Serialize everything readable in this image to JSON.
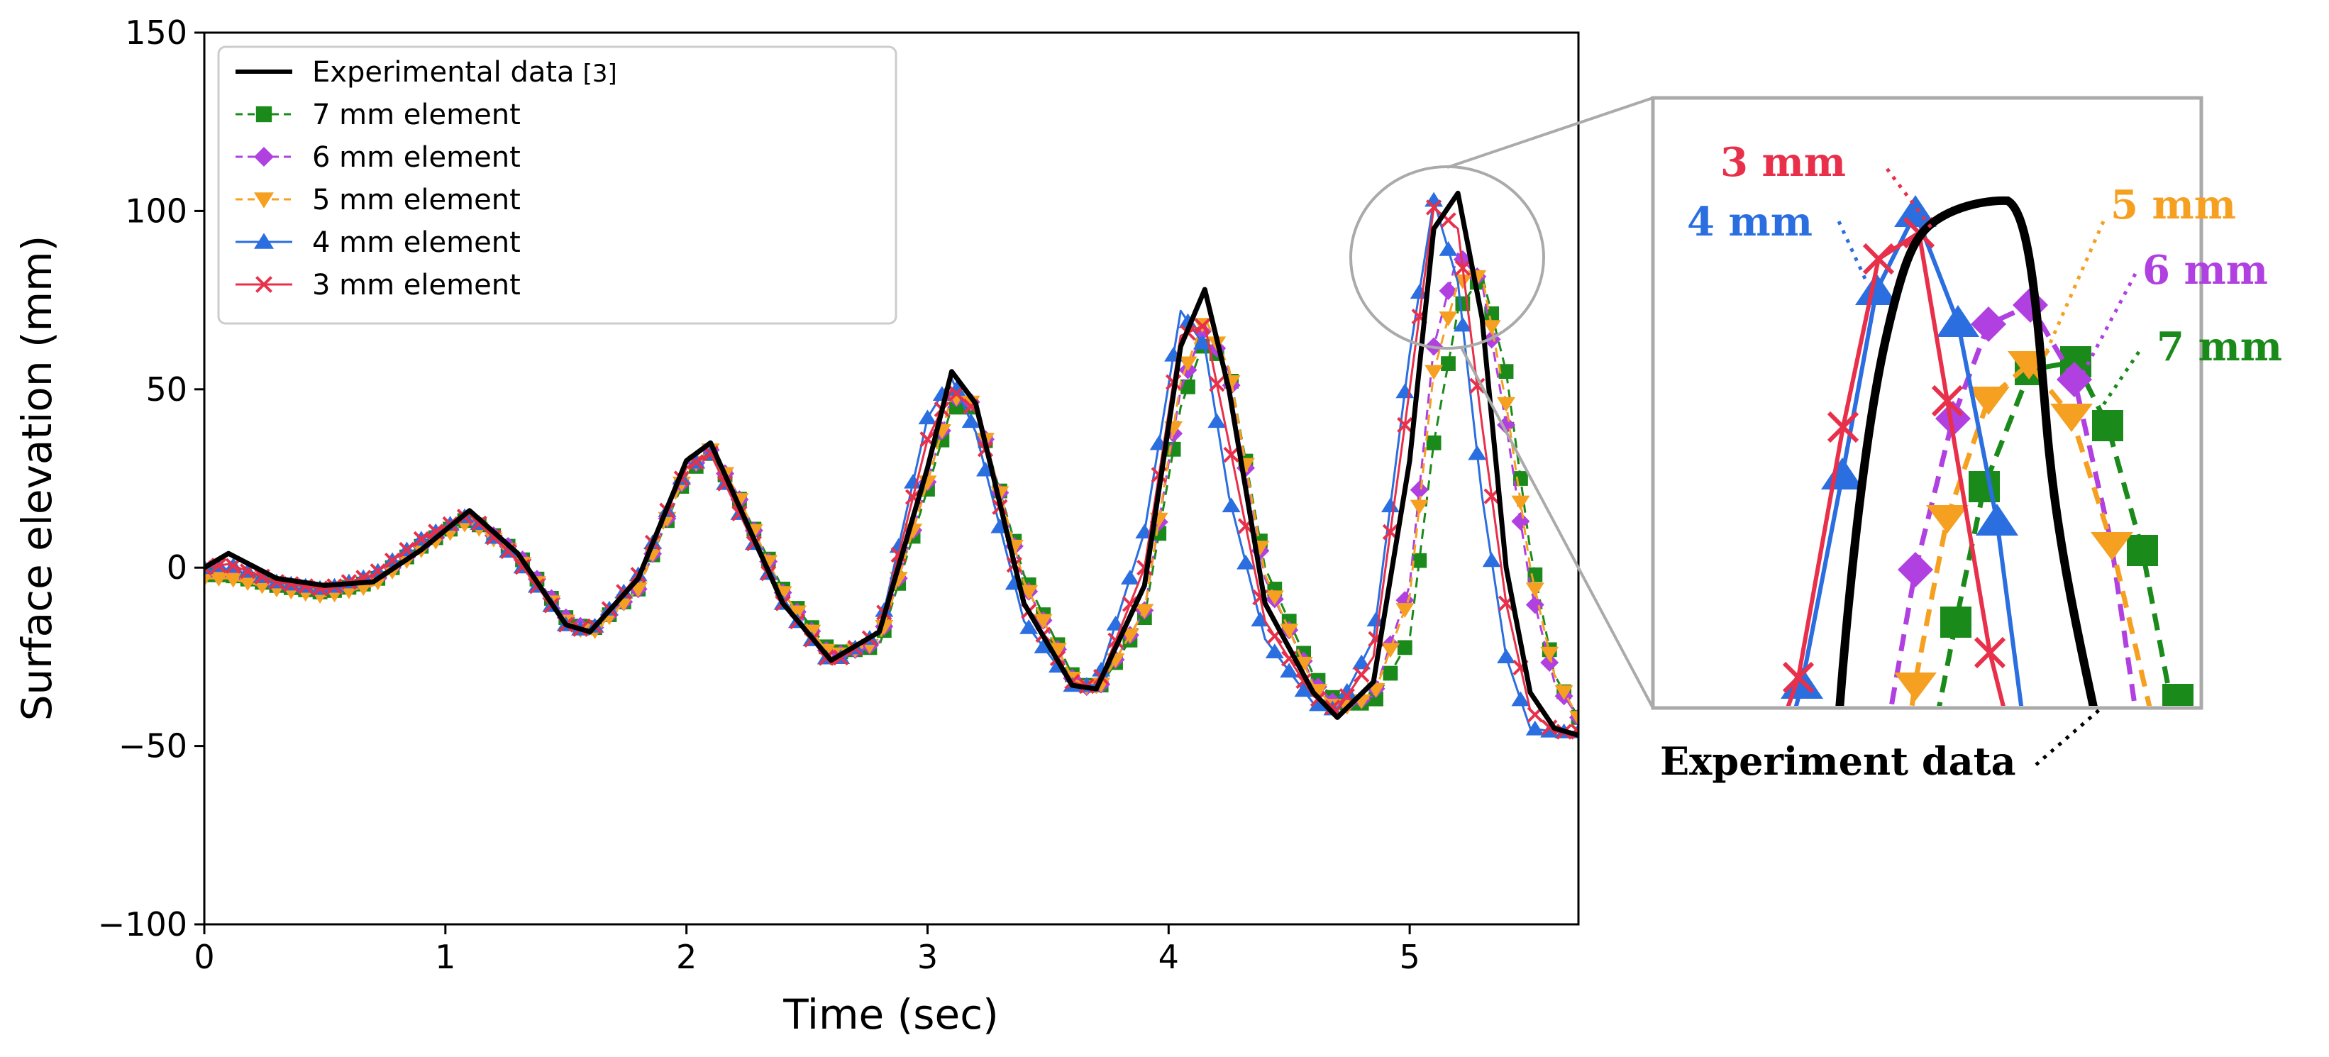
{
  "chart_data": {
    "type": "line",
    "xlabel": "Time (sec)",
    "ylabel": "Surface elevation (mm)",
    "xlim": [
      0,
      5.7
    ],
    "ylim": [
      -100,
      150
    ],
    "xticks": [
      0,
      1,
      2,
      3,
      4,
      5
    ],
    "yticks": [
      -100,
      -50,
      0,
      50,
      100,
      150
    ],
    "grid": false,
    "legend_position": "top-left",
    "series": [
      {
        "id": "exp",
        "name": "Experimental data",
        "name_ref": "[3]",
        "color": "#000000",
        "linestyle": "solid",
        "marker": "none",
        "x": [
          0,
          0.1,
          0.3,
          0.5,
          0.7,
          0.9,
          1.1,
          1.3,
          1.5,
          1.6,
          1.8,
          2.0,
          2.1,
          2.2,
          2.4,
          2.6,
          2.8,
          3.0,
          3.1,
          3.2,
          3.4,
          3.6,
          3.7,
          3.9,
          4.05,
          4.15,
          4.25,
          4.4,
          4.6,
          4.7,
          4.85,
          5.0,
          5.1,
          5.2,
          5.3,
          5.4,
          5.5,
          5.6,
          5.7
        ],
        "y": [
          0,
          4,
          -3,
          -5,
          -4,
          5,
          16,
          4,
          -16,
          -18,
          -3,
          30,
          35,
          20,
          -10,
          -26,
          -18,
          28,
          55,
          46,
          -10,
          -33,
          -34,
          -5,
          62,
          78,
          50,
          -10,
          -35,
          -42,
          -32,
          30,
          95,
          105,
          70,
          0,
          -35,
          -45,
          -47
        ]
      },
      {
        "id": "mm7",
        "name": "7 mm element",
        "color": "#1a8a1a",
        "linestyle": "dashed",
        "marker": "square",
        "x": [
          0,
          0.1,
          0.3,
          0.5,
          0.7,
          0.9,
          1.1,
          1.3,
          1.5,
          1.6,
          1.8,
          2.0,
          2.1,
          2.2,
          2.4,
          2.6,
          2.8,
          3.0,
          3.1,
          3.2,
          3.4,
          3.6,
          3.7,
          3.9,
          4.05,
          4.15,
          4.25,
          4.4,
          4.6,
          4.7,
          4.85,
          5.0,
          5.1,
          5.2,
          5.3,
          5.4,
          5.5,
          5.6,
          5.7
        ],
        "y": [
          -2,
          -2,
          -5,
          -7,
          -4,
          6,
          14,
          4,
          -14,
          -18,
          -6,
          26,
          32,
          22,
          -6,
          -24,
          -22,
          22,
          45,
          45,
          -2,
          -30,
          -35,
          -14,
          45,
          64,
          56,
          0,
          -30,
          -38,
          -38,
          -20,
          35,
          72,
          82,
          55,
          5,
          -30,
          -42
        ]
      },
      {
        "id": "mm6",
        "name": "6 mm element",
        "color": "#b040e0",
        "linestyle": "dashed",
        "marker": "diamond",
        "x": [
          0,
          0.1,
          0.3,
          0.5,
          0.7,
          0.9,
          1.1,
          1.3,
          1.5,
          1.6,
          1.8,
          2.0,
          2.1,
          2.2,
          2.4,
          2.6,
          2.8,
          3.0,
          3.1,
          3.2,
          3.4,
          3.6,
          3.7,
          3.9,
          4.05,
          4.15,
          4.25,
          4.4,
          4.6,
          4.7,
          4.85,
          5.0,
          5.1,
          5.2,
          5.3,
          5.4,
          5.5,
          5.6,
          5.7
        ],
        "y": [
          -2,
          -2,
          -5,
          -7,
          -4,
          6,
          14,
          4,
          -14,
          -18,
          -6,
          27,
          33,
          22,
          -7,
          -25,
          -21,
          24,
          48,
          46,
          -4,
          -31,
          -35,
          -12,
          50,
          68,
          55,
          -3,
          -32,
          -39,
          -36,
          -5,
          62,
          88,
          80,
          40,
          -5,
          -32,
          -42
        ]
      },
      {
        "id": "mm5",
        "name": "5 mm element",
        "color": "#f5a020",
        "linestyle": "dashed",
        "marker": "triangle-down",
        "x": [
          0,
          0.1,
          0.3,
          0.5,
          0.7,
          0.9,
          1.1,
          1.3,
          1.5,
          1.6,
          1.8,
          2.0,
          2.1,
          2.2,
          2.4,
          2.6,
          2.8,
          3.0,
          3.1,
          3.2,
          3.4,
          3.6,
          3.7,
          3.9,
          4.05,
          4.15,
          4.25,
          4.4,
          4.6,
          4.7,
          4.85,
          5.0,
          5.1,
          5.2,
          5.3,
          5.4,
          5.5,
          5.6,
          5.7
        ],
        "y": [
          -3,
          -3,
          -6,
          -8,
          -5,
          5,
          13,
          3,
          -15,
          -19,
          -6,
          27,
          33,
          22,
          -7,
          -25,
          -21,
          24,
          48,
          46,
          -4,
          -31,
          -35,
          -12,
          52,
          70,
          56,
          -2,
          -33,
          -40,
          -36,
          -8,
          55,
          80,
          82,
          46,
          0,
          -30,
          -42
        ]
      },
      {
        "id": "mm4",
        "name": "4 mm element",
        "color": "#2a6ee0",
        "linestyle": "solid",
        "marker": "triangle-up",
        "x": [
          0,
          0.1,
          0.3,
          0.5,
          0.7,
          0.9,
          1.1,
          1.3,
          1.5,
          1.6,
          1.8,
          2.0,
          2.1,
          2.2,
          2.4,
          2.6,
          2.8,
          3.0,
          3.1,
          3.2,
          3.4,
          3.6,
          3.7,
          3.9,
          4.05,
          4.15,
          4.25,
          4.4,
          4.6,
          4.7,
          4.85,
          5.0,
          5.1,
          5.2,
          5.3,
          5.4,
          5.5,
          5.6,
          5.7
        ],
        "y": [
          0,
          1,
          -4,
          -6,
          -2,
          8,
          15,
          2,
          -16,
          -18,
          -2,
          28,
          32,
          18,
          -10,
          -27,
          -18,
          42,
          53,
          38,
          -15,
          -33,
          -33,
          10,
          72,
          62,
          20,
          -20,
          -38,
          -40,
          -20,
          60,
          103,
          80,
          20,
          -25,
          -45,
          -46,
          -46
        ]
      },
      {
        "id": "mm3",
        "name": "3 mm element",
        "color": "#e8304a",
        "linestyle": "solid",
        "marker": "x",
        "x": [
          0,
          0.1,
          0.3,
          0.5,
          0.7,
          0.9,
          1.1,
          1.3,
          1.5,
          1.6,
          1.8,
          2.0,
          2.1,
          2.2,
          2.4,
          2.6,
          2.8,
          3.0,
          3.1,
          3.2,
          3.4,
          3.6,
          3.7,
          3.9,
          4.05,
          4.15,
          4.25,
          4.4,
          4.6,
          4.7,
          4.85,
          5.0,
          5.1,
          5.2,
          5.3,
          5.4,
          5.5,
          5.6,
          5.7
        ],
        "y": [
          0,
          1,
          -4,
          -6,
          -2,
          8,
          15,
          2,
          -16,
          -18,
          -2,
          28,
          32,
          18,
          -10,
          -27,
          -18,
          36,
          50,
          44,
          -10,
          -32,
          -34,
          0,
          65,
          68,
          35,
          -15,
          -36,
          -40,
          -25,
          50,
          101,
          95,
          40,
          -10,
          -40,
          -46,
          -46
        ]
      }
    ],
    "zoom_inset": {
      "series": [
        {
          "label": "3 mm",
          "color": "#e8304a"
        },
        {
          "label": "4 mm",
          "color": "#2a6ee0"
        },
        {
          "label": "5 mm",
          "color": "#f5a020"
        },
        {
          "label": "6 mm",
          "color": "#b040e0"
        },
        {
          "label": "7 mm",
          "color": "#1a8a1a"
        }
      ],
      "experiment_label": "Experiment data"
    }
  }
}
